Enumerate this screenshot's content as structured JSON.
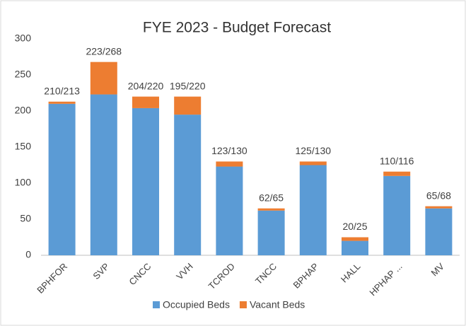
{
  "chart_data": {
    "type": "stacked_bar",
    "title": "FYE 2023 - Budget Forecast",
    "categories": [
      "BPHFOR",
      "SVP",
      "CNCC",
      "VVH",
      "TCROD",
      "TNCC",
      "BPHAP",
      "HALL",
      "HPHAP ...",
      "MV"
    ],
    "series": [
      {
        "name": "Occupied Beds",
        "color": "#5b9bd5",
        "values": [
          210,
          223,
          204,
          195,
          123,
          62,
          125,
          20,
          110,
          65
        ]
      },
      {
        "name": "Vacant Beds",
        "color": "#ed7d31",
        "values": [
          3,
          45,
          16,
          25,
          7,
          3,
          5,
          5,
          6,
          3
        ]
      }
    ],
    "bar_labels": [
      "210/213",
      "223/268",
      "204/220",
      "195/220",
      "123/130",
      "62/65",
      "125/130",
      "20/25",
      "110/116",
      "65/68"
    ],
    "ylim": [
      0,
      300
    ],
    "yticks": [
      0,
      50,
      100,
      150,
      200,
      250,
      300
    ],
    "grid": false,
    "legend": "bottom"
  }
}
